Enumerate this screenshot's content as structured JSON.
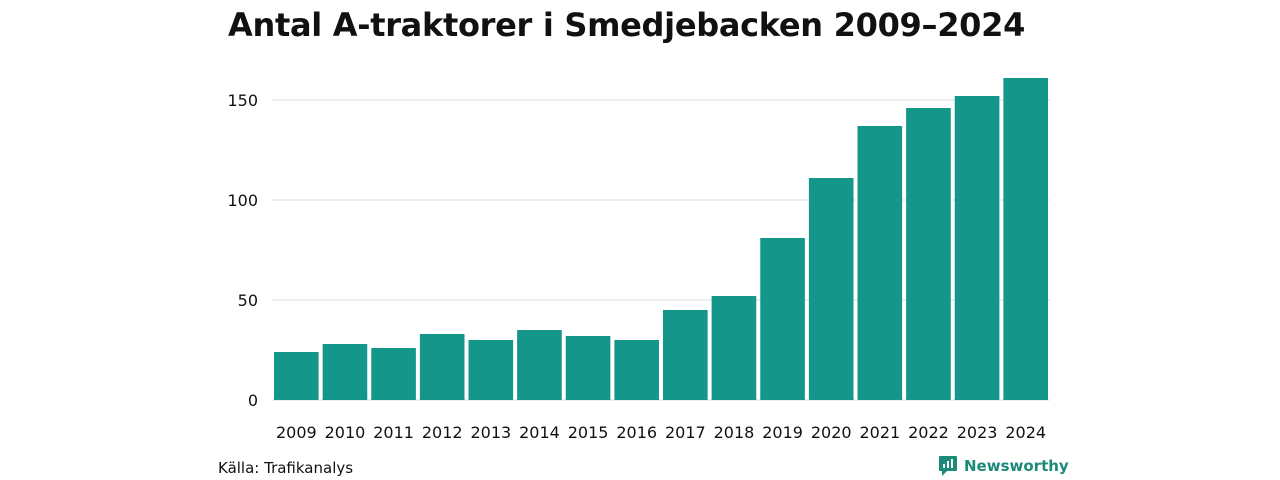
{
  "chart_data": {
    "type": "bar",
    "title": "Antal A-traktorer i Smedjebacken 2009–2024",
    "categories": [
      "2009",
      "2010",
      "2011",
      "2012",
      "2013",
      "2014",
      "2015",
      "2016",
      "2017",
      "2018",
      "2019",
      "2020",
      "2021",
      "2022",
      "2023",
      "2024"
    ],
    "values": [
      24,
      28,
      26,
      33,
      30,
      35,
      32,
      30,
      45,
      52,
      81,
      111,
      137,
      146,
      152,
      161
    ],
    "xlabel": "",
    "ylabel": "",
    "ylim": [
      0,
      165
    ],
    "yticks": [
      0,
      50,
      100,
      150
    ],
    "grid": true,
    "bar_color": "#14968a",
    "grid_color": "#dddddd"
  },
  "footer": {
    "source": "Källa: Trafikanalys",
    "brand": "Newsworthy",
    "brand_color": "#1b8a78",
    "brand_icon": "newsworthy-logo-icon"
  }
}
